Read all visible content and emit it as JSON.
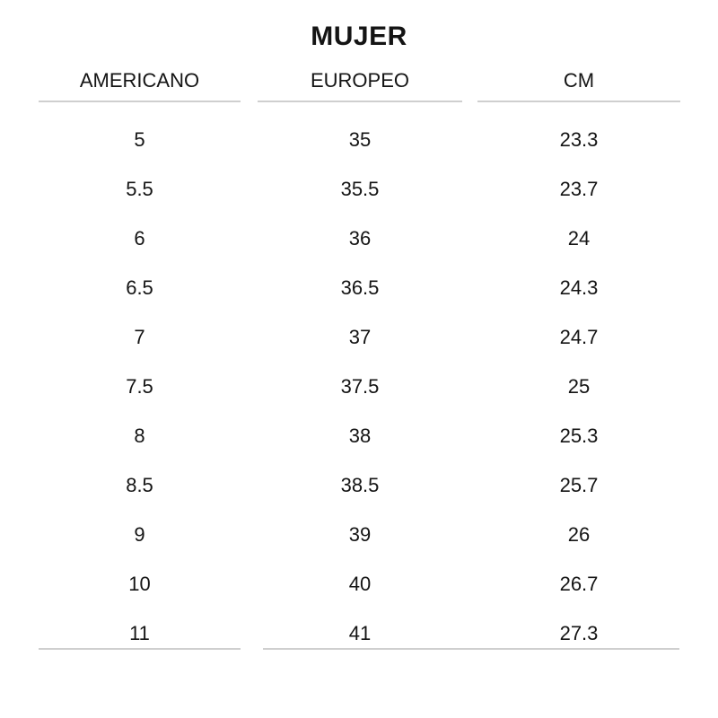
{
  "chart_data": {
    "type": "table",
    "title": "MUJER",
    "columns": [
      "AMERICANO",
      "EUROPEO",
      "CM"
    ],
    "rows": [
      [
        "5",
        "35",
        "23.3"
      ],
      [
        "5.5",
        "35.5",
        "23.7"
      ],
      [
        "6",
        "36",
        "24"
      ],
      [
        "6.5",
        "36.5",
        "24.3"
      ],
      [
        "7",
        "37",
        "24.7"
      ],
      [
        "7.5",
        "37.5",
        "25"
      ],
      [
        "8",
        "38",
        "25.3"
      ],
      [
        "8.5",
        "38.5",
        "25.7"
      ],
      [
        "9",
        "39",
        "26"
      ],
      [
        "10",
        "40",
        "26.7"
      ],
      [
        "11",
        "41",
        "27.3"
      ]
    ]
  },
  "colors": {
    "text": "#141414",
    "rule": "#cfcfcf",
    "background": "#ffffff"
  }
}
